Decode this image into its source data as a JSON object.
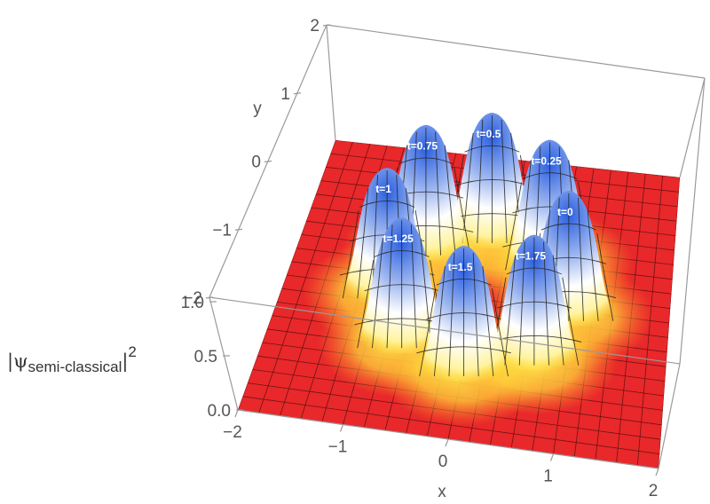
{
  "chart_data": {
    "type": "surface3d",
    "xlabel": "x",
    "ylabel": "y",
    "zlabel": {
      "prefix": "|ψ",
      "subscript": "semi-classical",
      "suffix": "|",
      "superscript": "2"
    },
    "xlim": [
      -2,
      2
    ],
    "ylim": [
      -2,
      2
    ],
    "zlim": [
      0,
      1
    ],
    "x_ticks": [
      "−2",
      "−1",
      "0",
      "1",
      "2"
    ],
    "y_ticks": [
      "2",
      "1",
      "0",
      "−1",
      "−2"
    ],
    "z_ticks": [
      "1.0",
      "0.5",
      "0.0"
    ],
    "peaks": [
      {
        "label": "t=0",
        "t": 0,
        "x": 0.95,
        "y": 0.0,
        "height": 0.9
      },
      {
        "label": "t=0.25",
        "t": 0.25,
        "x": 0.67,
        "y": 0.67,
        "height": 0.9
      },
      {
        "label": "t=0.5",
        "t": 0.5,
        "x": 0.0,
        "y": 0.95,
        "height": 0.9
      },
      {
        "label": "t=0.75",
        "t": 0.75,
        "x": -0.67,
        "y": 0.67,
        "height": 0.9
      },
      {
        "label": "t=1",
        "t": 1,
        "x": -0.95,
        "y": 0.0,
        "height": 0.9
      },
      {
        "label": "t=1.25",
        "t": 1.25,
        "x": -0.67,
        "y": -0.67,
        "height": 0.9
      },
      {
        "label": "t=1.5",
        "t": 1.5,
        "x": 0.0,
        "y": -0.95,
        "height": 0.9
      },
      {
        "label": "t=1.75",
        "t": 1.75,
        "x": 0.67,
        "y": -0.67,
        "height": 0.9
      }
    ],
    "colors": {
      "base": "#e8282a",
      "mid": "#ffe23a",
      "high": "#ffffff",
      "peak": "#2a5fe0"
    }
  }
}
